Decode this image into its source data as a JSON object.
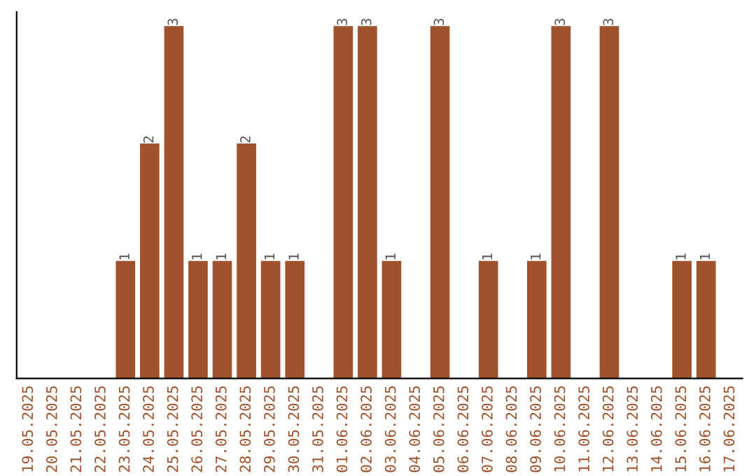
{
  "chart_data": {
    "type": "bar",
    "categories": [
      "19.05.2025",
      "20.05.2025",
      "21.05.2025",
      "22.05.2025",
      "23.05.2025",
      "24.05.2025",
      "25.05.2025",
      "26.05.2025",
      "27.05.2025",
      "28.05.2025",
      "29.05.2025",
      "30.05.2025",
      "31.05.2025",
      "01.06.2025",
      "02.06.2025",
      "03.06.2025",
      "04.06.2025",
      "05.06.2025",
      "06.06.2025",
      "07.06.2025",
      "08.06.2025",
      "09.06.2025",
      "10.06.2025",
      "11.06.2025",
      "12.06.2025",
      "13.06.2025",
      "14.06.2025",
      "15.06.2025",
      "16.06.2025",
      "17.06.2025"
    ],
    "values": [
      0,
      0,
      0,
      0,
      1,
      2,
      3,
      1,
      1,
      2,
      1,
      1,
      0,
      3,
      3,
      1,
      0,
      3,
      0,
      1,
      0,
      1,
      3,
      0,
      3,
      0,
      0,
      1,
      1,
      0
    ],
    "value_labels": [
      null,
      null,
      null,
      null,
      "1",
      "2",
      "3",
      "1",
      "1",
      "2",
      "1",
      "1",
      null,
      "3",
      "3",
      "1",
      null,
      "3",
      null,
      "1",
      null,
      "1",
      "3",
      null,
      "3",
      null,
      null,
      "1",
      "1",
      null
    ],
    "color": "#a0522d",
    "grid": false,
    "legend": false
  }
}
